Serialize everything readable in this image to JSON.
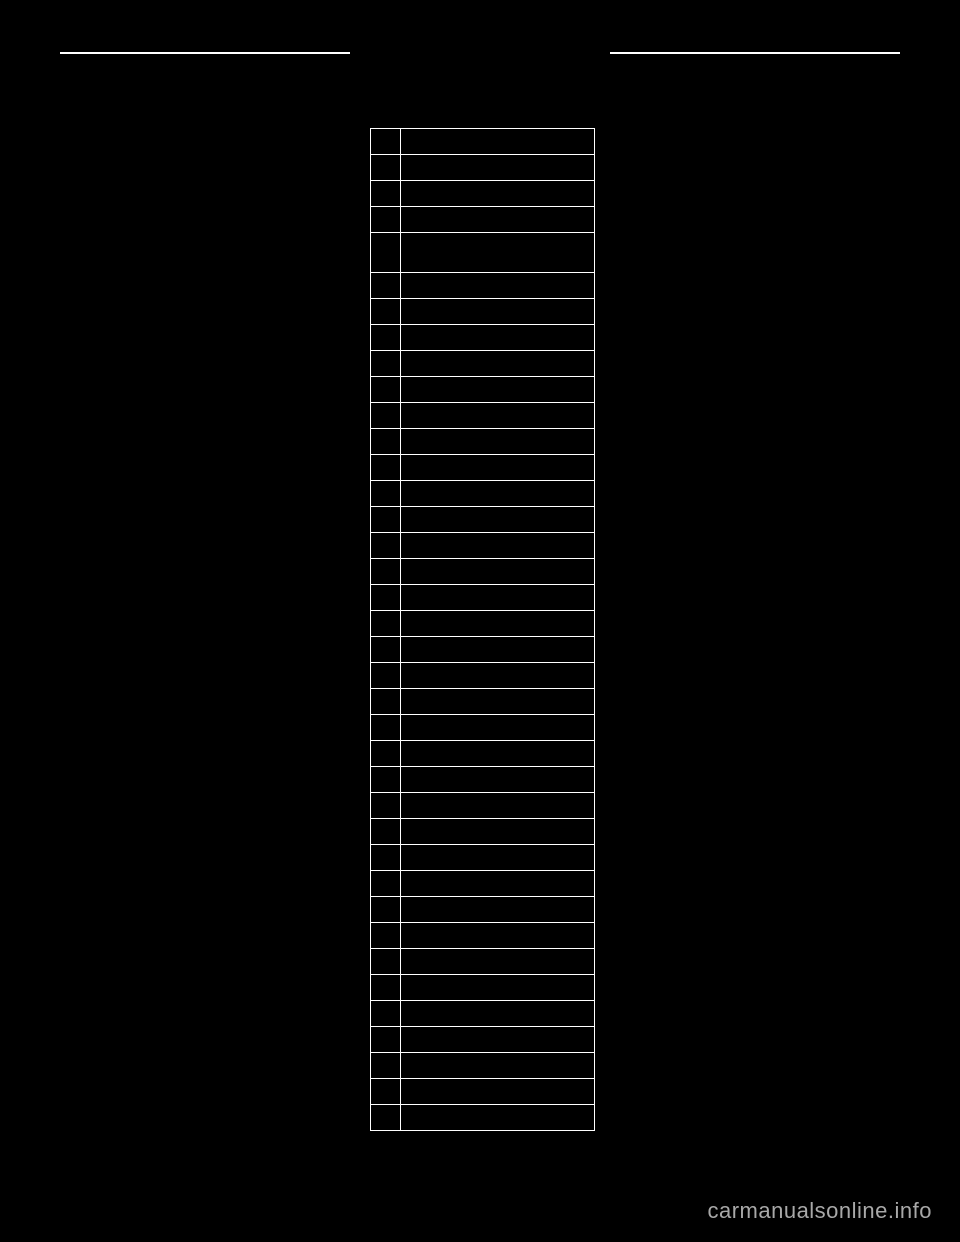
{
  "page": {
    "background_color": "#000000",
    "line_color": "#ffffff",
    "watermark": "carmanualsonline.info",
    "watermark_color": "#a8a8a8"
  },
  "header": {
    "left_rule_width": 290,
    "right_rule_width": 290
  },
  "table": {
    "type": "table",
    "columns": [
      {
        "key": "col1",
        "width": 30
      },
      {
        "key": "col2",
        "width": 195
      }
    ],
    "border_color": "#ffffff",
    "cell_background": "#000000",
    "default_row_height": 26,
    "tall_row_height": 40,
    "rows": [
      {
        "c1": "",
        "c2": "",
        "tall": false
      },
      {
        "c1": "",
        "c2": "",
        "tall": false
      },
      {
        "c1": "",
        "c2": "",
        "tall": false
      },
      {
        "c1": "",
        "c2": "",
        "tall": false
      },
      {
        "c1": "",
        "c2": "",
        "tall": true
      },
      {
        "c1": "",
        "c2": "",
        "tall": false
      },
      {
        "c1": "",
        "c2": "",
        "tall": false
      },
      {
        "c1": "",
        "c2": "",
        "tall": false
      },
      {
        "c1": "",
        "c2": "",
        "tall": false
      },
      {
        "c1": "",
        "c2": "",
        "tall": false
      },
      {
        "c1": "",
        "c2": "",
        "tall": false
      },
      {
        "c1": "",
        "c2": "",
        "tall": false
      },
      {
        "c1": "",
        "c2": "",
        "tall": false
      },
      {
        "c1": "",
        "c2": "",
        "tall": false
      },
      {
        "c1": "",
        "c2": "",
        "tall": false
      },
      {
        "c1": "",
        "c2": "",
        "tall": false
      },
      {
        "c1": "",
        "c2": "",
        "tall": false
      },
      {
        "c1": "",
        "c2": "",
        "tall": false
      },
      {
        "c1": "",
        "c2": "",
        "tall": false
      },
      {
        "c1": "",
        "c2": "",
        "tall": false
      },
      {
        "c1": "",
        "c2": "",
        "tall": false
      },
      {
        "c1": "",
        "c2": "",
        "tall": false
      },
      {
        "c1": "",
        "c2": "",
        "tall": false
      },
      {
        "c1": "",
        "c2": "",
        "tall": false
      },
      {
        "c1": "",
        "c2": "",
        "tall": false
      },
      {
        "c1": "",
        "c2": "",
        "tall": false
      },
      {
        "c1": "",
        "c2": "",
        "tall": false
      },
      {
        "c1": "",
        "c2": "",
        "tall": false
      },
      {
        "c1": "",
        "c2": "",
        "tall": false
      },
      {
        "c1": "",
        "c2": "",
        "tall": false
      },
      {
        "c1": "",
        "c2": "",
        "tall": false
      },
      {
        "c1": "",
        "c2": "",
        "tall": false
      },
      {
        "c1": "",
        "c2": "",
        "tall": false
      },
      {
        "c1": "",
        "c2": "",
        "tall": false
      },
      {
        "c1": "",
        "c2": "",
        "tall": false
      },
      {
        "c1": "",
        "c2": "",
        "tall": false
      },
      {
        "c1": "",
        "c2": "",
        "tall": false
      },
      {
        "c1": "",
        "c2": "",
        "tall": false
      }
    ]
  }
}
